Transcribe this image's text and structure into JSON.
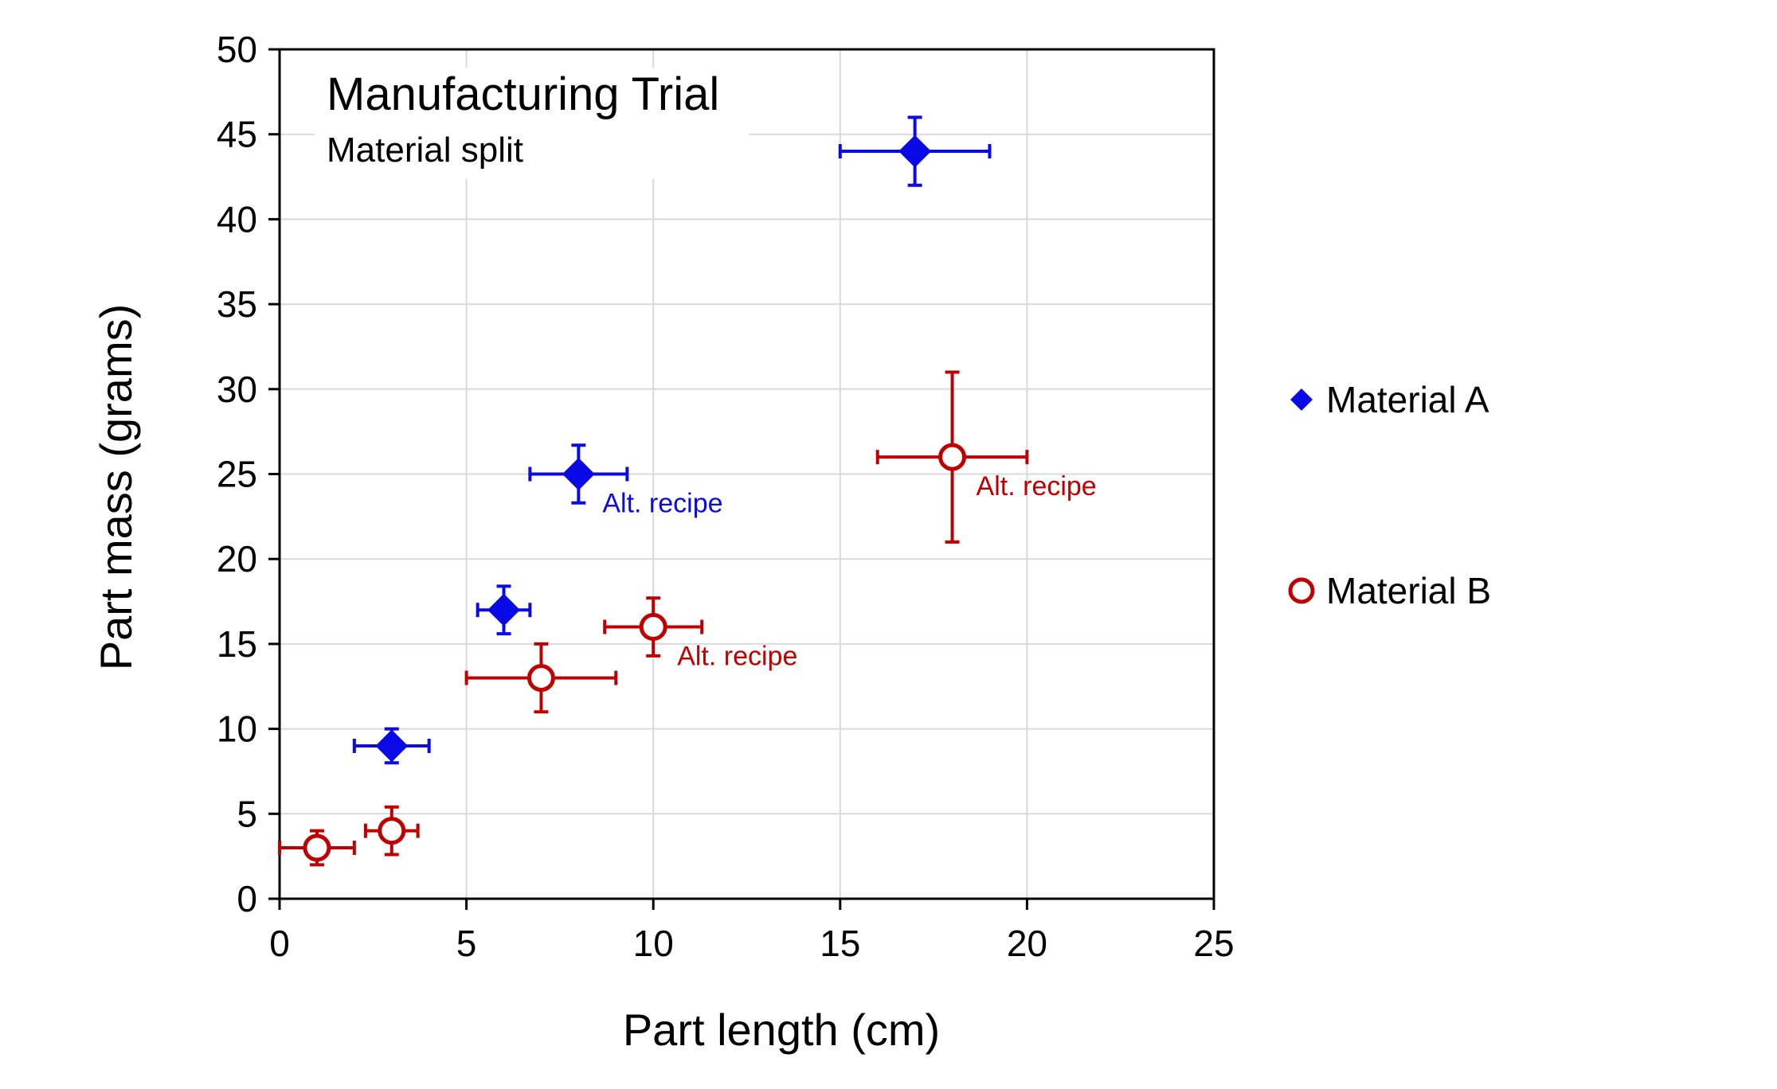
{
  "chart_data": {
    "type": "scatter",
    "title": "Manufacturing Trial",
    "subtitle": "Material split",
    "xlabel": "Part length (cm)",
    "ylabel": "Part mass (grams)",
    "xlim": [
      0,
      25
    ],
    "ylim": [
      0,
      50
    ],
    "xticks": [
      "0",
      "5",
      "10",
      "15",
      "20",
      "25"
    ],
    "yticks": [
      "0",
      "5",
      "10",
      "15",
      "20",
      "25",
      "30",
      "35",
      "40",
      "45",
      "50"
    ],
    "grid": true,
    "legend_position": "right",
    "series": [
      {
        "name": "Material A",
        "marker": "diamond-filled",
        "color": "#0a0ae6",
        "points": [
          {
            "x": 3,
            "y": 9,
            "xerr": 1,
            "yerr": 1
          },
          {
            "x": 6,
            "y": 17,
            "xerr": 0.7,
            "yerr": 1.4
          },
          {
            "x": 8,
            "y": 25,
            "xerr": 1.3,
            "yerr": 1.7,
            "annotation": "Alt. recipe"
          },
          {
            "x": 17,
            "y": 44,
            "xerr": 2,
            "yerr": 2
          }
        ]
      },
      {
        "name": "Material B",
        "marker": "circle-open",
        "color": "#c00000",
        "points": [
          {
            "x": 1,
            "y": 3,
            "xerr": 1,
            "yerr": 1
          },
          {
            "x": 3,
            "y": 4,
            "xerr": 0.7,
            "yerr": 1.4
          },
          {
            "x": 7,
            "y": 13,
            "xerr": 2,
            "yerr": 2
          },
          {
            "x": 10,
            "y": 16,
            "xerr": 1.3,
            "yerr": 1.7,
            "annotation": "Alt. recipe"
          },
          {
            "x": 18,
            "y": 26,
            "xerr": 2,
            "yerr": 5,
            "annotation": "Alt. recipe"
          }
        ]
      }
    ]
  }
}
